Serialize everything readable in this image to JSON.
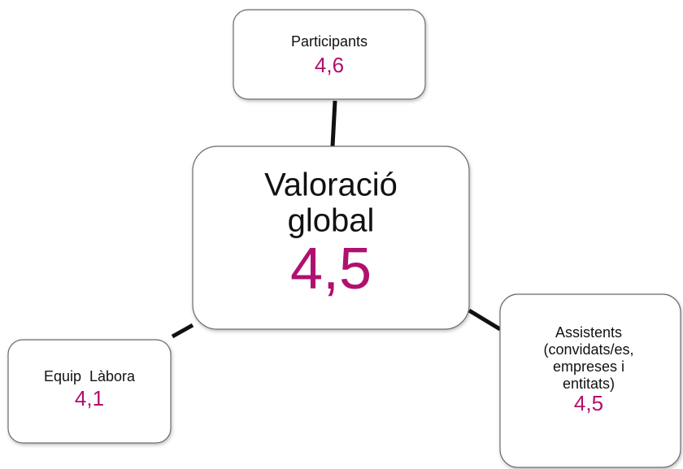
{
  "center": {
    "label": [
      "Valoració",
      "global"
    ],
    "value": "4,5"
  },
  "nodes": [
    {
      "label": [
        "Participants"
      ],
      "value": "4,6"
    },
    {
      "label": [
        "Equip  Làbora"
      ],
      "value": "4,1"
    },
    {
      "label": [
        "Assistents",
        "(convidats/es,",
        "empreses i",
        "entitats)"
      ],
      "value": "4,5"
    }
  ]
}
